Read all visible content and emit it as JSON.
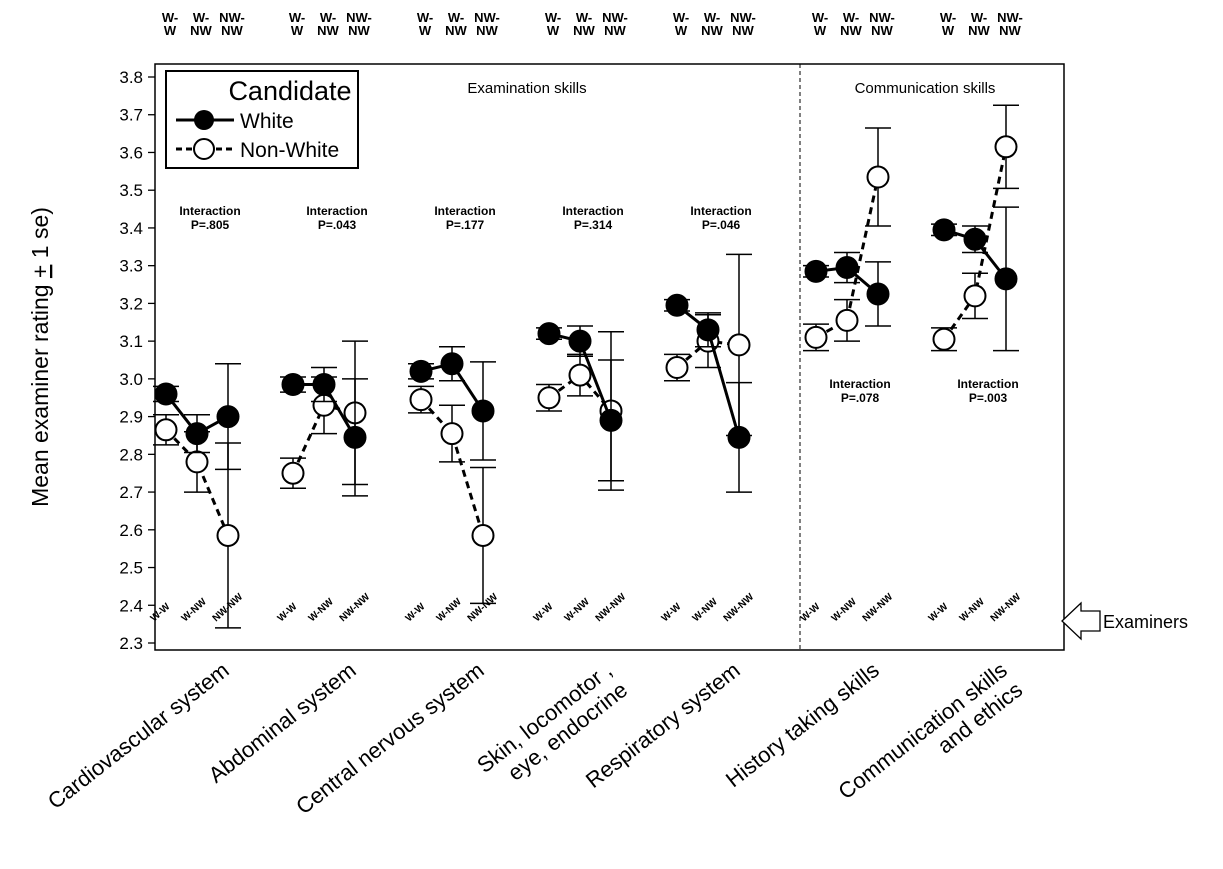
{
  "chart_data": {
    "type": "line",
    "ylabel_main": "Mean examiner rating ",
    "ylabel_pm": "+",
    "ylabel_tail": " 1 se)",
    "ylim": [
      2.3,
      3.8
    ],
    "yticks": [
      "2.3",
      "2.4",
      "2.5",
      "2.6",
      "2.7",
      "2.8",
      "2.9",
      "3.0",
      "3.1",
      "3.2",
      "3.3",
      "3.4",
      "3.5",
      "3.6",
      "3.7",
      "3.8"
    ],
    "categories": [
      [
        "Cardiovascular system"
      ],
      [
        "Abdominal system"
      ],
      [
        "Central nervous system"
      ],
      [
        "Skin, locomotor ,",
        "eye, endocrine"
      ],
      [
        "Respiratory system"
      ],
      [
        "History taking skills"
      ],
      [
        "Communication skills",
        "and ethics"
      ]
    ],
    "examiner_groups": [
      "W-W",
      "W-NW",
      "NW-NW"
    ],
    "top_headers": [
      [
        "W-",
        "W"
      ],
      [
        "W-",
        "NW"
      ],
      [
        "NW-",
        "NW"
      ]
    ],
    "section_labels": [
      "Examination skills",
      "Communication skills"
    ],
    "interaction_word": "Interaction",
    "interactions": [
      "P=.805",
      "P=.043",
      "P=.177",
      "P=.314",
      "P=.046",
      "P=.078",
      "P=.003"
    ],
    "examiners_label": "Examiners",
    "legend": {
      "title": "Candidate",
      "entries": [
        "White",
        "Non-White"
      ],
      "placement": "top-left"
    },
    "series": [
      {
        "name": "White",
        "values": [
          [
            2.96,
            2.855,
            2.9
          ],
          [
            2.985,
            2.985,
            2.845
          ],
          [
            3.02,
            3.04,
            2.915
          ],
          [
            3.12,
            3.1,
            2.89
          ],
          [
            3.195,
            3.13,
            2.845
          ],
          [
            3.285,
            3.295,
            3.225
          ],
          [
            3.395,
            3.37,
            3.265
          ]
        ],
        "se": [
          [
            0.02,
            0.05,
            0.14
          ],
          [
            0.02,
            0.045,
            0.155
          ],
          [
            0.02,
            0.045,
            0.13
          ],
          [
            0.015,
            0.04,
            0.16
          ],
          [
            0.015,
            0.045,
            0.145
          ],
          [
            0.015,
            0.04,
            0.085
          ],
          [
            0.015,
            0.035,
            0.19
          ]
        ]
      },
      {
        "name": "Non-White",
        "values": [
          [
            2.865,
            2.78,
            2.585
          ],
          [
            2.75,
            2.93,
            2.91
          ],
          [
            2.945,
            2.855,
            2.585
          ],
          [
            2.95,
            3.01,
            2.915
          ],
          [
            3.03,
            3.1,
            3.09
          ],
          [
            3.11,
            3.155,
            3.535
          ],
          [
            3.105,
            3.22,
            3.615
          ]
        ],
        "se": [
          [
            0.04,
            0.08,
            0.245
          ],
          [
            0.04,
            0.075,
            0.19
          ],
          [
            0.035,
            0.075,
            0.18
          ],
          [
            0.035,
            0.055,
            0.21
          ],
          [
            0.035,
            0.07,
            0.24
          ],
          [
            0.035,
            0.055,
            0.13
          ],
          [
            0.03,
            0.06,
            0.11
          ]
        ]
      }
    ]
  }
}
